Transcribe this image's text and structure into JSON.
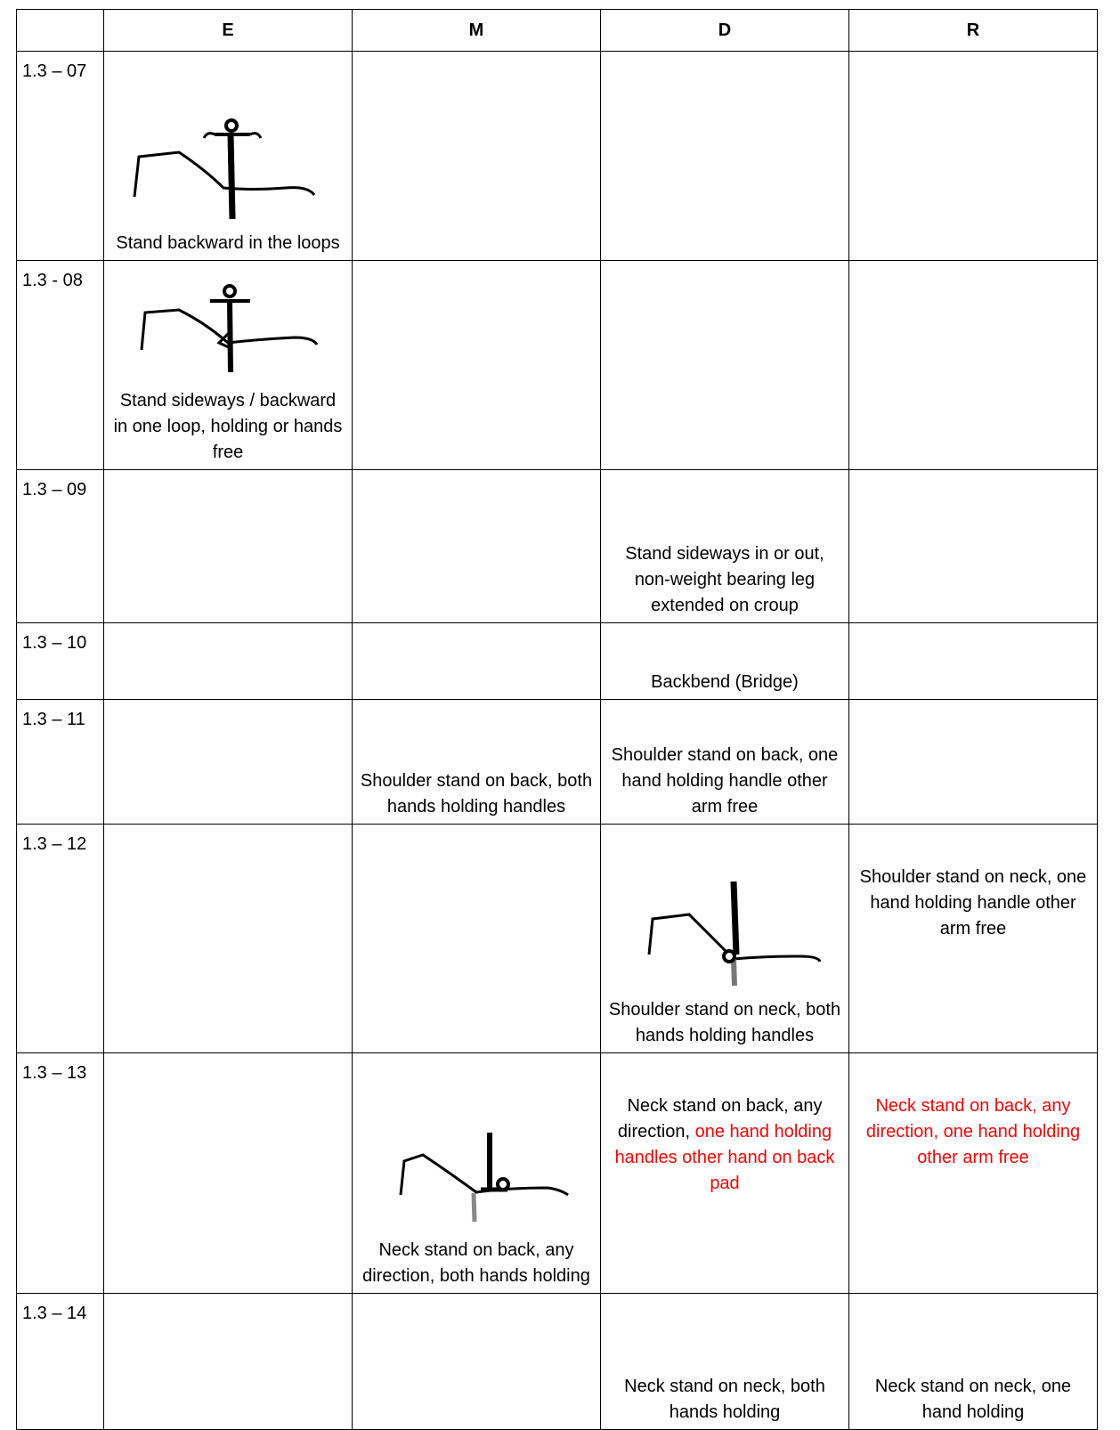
{
  "table": {
    "columns": [
      "E",
      "M",
      "D",
      "R"
    ],
    "rows": [
      {
        "id": "1.3 – 07",
        "cells": [
          "Stand backward in the loops",
          null,
          null,
          null
        ]
      },
      {
        "id": "1.3 - 08",
        "cells": [
          "Stand sideways / backward in one loop, holding or hands free",
          null,
          null,
          null
        ]
      },
      {
        "id": "1.3 – 09",
        "cells": [
          null,
          null,
          "Stand sideways in or out,\nnon-weight bearing leg extended on croup",
          null
        ]
      },
      {
        "id": "1.3 – 10",
        "cells": [
          null,
          null,
          "Backbend (Bridge)",
          null
        ]
      },
      {
        "id": "1.3 – 11",
        "cells": [
          null,
          "Shoulder stand on back, both hands holding handles",
          "Shoulder stand on back, one hand holding handle other arm free",
          null
        ]
      },
      {
        "id": "1.3 – 12",
        "cells": [
          null,
          null,
          "Shoulder stand on neck, both hands holding handles",
          "Shoulder stand on neck, one hand holding handle other arm free"
        ]
      },
      {
        "id": "1.3 – 13",
        "cells": [
          null,
          "Neck stand on back, any direction, both hands holding",
          [
            {
              "text": "Neck stand on back, any direction, ",
              "color": "#000000"
            },
            {
              "text": "one hand holding handles other hand on back pad",
              "color": "#ff0000"
            }
          ],
          [
            {
              "text": "Neck stand on back, any direction, one hand holding other arm free",
              "color": "#ff0000"
            }
          ]
        ]
      },
      {
        "id": "1.3 – 14",
        "cells": [
          null,
          null,
          "Neck stand on neck, both hands holding",
          "Neck stand on neck, one hand holding"
        ]
      }
    ]
  }
}
